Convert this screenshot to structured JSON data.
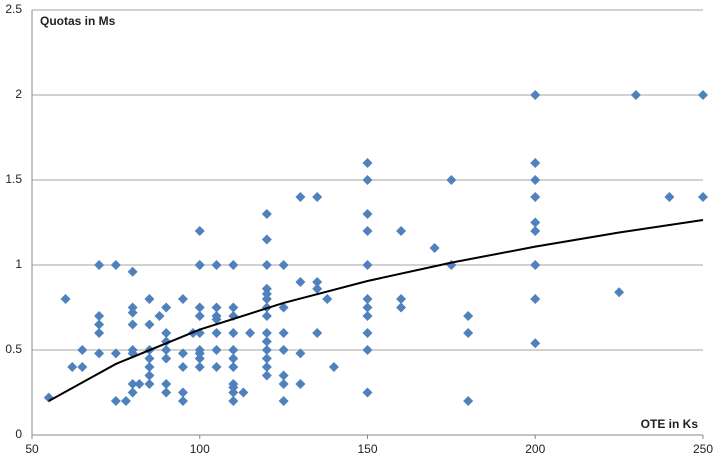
{
  "chart_data": {
    "type": "scatter",
    "y_label": "Quotas in Ms",
    "x_label": "OTE in Ks",
    "xlim": [
      50,
      250
    ],
    "xticks": [
      50,
      100,
      150,
      200,
      250
    ],
    "ylim": [
      0,
      2.5
    ],
    "yticks": [
      0,
      0.5,
      1,
      1.5,
      2,
      2.5
    ],
    "grid": true,
    "series": [
      {
        "color": "#4f81bd",
        "x": [
          55,
          60,
          62,
          65,
          65,
          70,
          70,
          70,
          70,
          70,
          75,
          75,
          75,
          78,
          80,
          80,
          80,
          80,
          80,
          80,
          80,
          80,
          82,
          85,
          85,
          85,
          85,
          85,
          85,
          85,
          88,
          90,
          90,
          90,
          90,
          90,
          90,
          90,
          95,
          95,
          95,
          95,
          95,
          98,
          100,
          100,
          100,
          100,
          100,
          100,
          100,
          100,
          100,
          100,
          105,
          105,
          105,
          105,
          105,
          105,
          105,
          110,
          110,
          110,
          110,
          110,
          110,
          110,
          110,
          110,
          110,
          110,
          113,
          115,
          120,
          120,
          120,
          120,
          120,
          120,
          120,
          120,
          120,
          120,
          120,
          120,
          120,
          120,
          125,
          125,
          125,
          125,
          125,
          125,
          125,
          130,
          130,
          130,
          130,
          135,
          135,
          135,
          135,
          138,
          140,
          150,
          150,
          150,
          150,
          150,
          150,
          150,
          150,
          150,
          150,
          150,
          160,
          160,
          160,
          170,
          175,
          175,
          180,
          180,
          180,
          200,
          200,
          200,
          200,
          200,
          200,
          200,
          200,
          200,
          225,
          230,
          240,
          250,
          250
        ],
        "values": [
          0.22,
          0.8,
          0.4,
          0.5,
          0.4,
          1.0,
          0.7,
          0.65,
          0.6,
          0.48,
          1.0,
          0.48,
          0.2,
          0.2,
          0.96,
          0.75,
          0.72,
          0.65,
          0.5,
          0.48,
          0.3,
          0.25,
          0.3,
          0.8,
          0.65,
          0.5,
          0.45,
          0.4,
          0.35,
          0.3,
          0.7,
          0.75,
          0.6,
          0.55,
          0.5,
          0.45,
          0.3,
          0.25,
          0.8,
          0.48,
          0.4,
          0.25,
          0.2,
          0.6,
          1.2,
          1.0,
          1.0,
          0.75,
          0.7,
          0.6,
          0.5,
          0.48,
          0.45,
          0.4,
          1.0,
          0.75,
          0.7,
          0.68,
          0.6,
          0.5,
          0.4,
          1.0,
          0.75,
          0.7,
          0.6,
          0.5,
          0.45,
          0.4,
          0.3,
          0.28,
          0.25,
          0.2,
          0.25,
          0.6,
          1.3,
          1.15,
          1.0,
          0.86,
          0.83,
          0.8,
          0.75,
          0.7,
          0.6,
          0.55,
          0.5,
          0.45,
          0.4,
          0.35,
          1.0,
          0.75,
          0.6,
          0.5,
          0.35,
          0.3,
          0.2,
          1.4,
          0.9,
          0.48,
          0.3,
          1.4,
          0.9,
          0.86,
          0.6,
          0.8,
          0.4,
          1.6,
          1.5,
          1.3,
          1.2,
          1.0,
          0.8,
          0.75,
          0.7,
          0.6,
          0.5,
          0.25,
          1.2,
          0.8,
          0.75,
          1.1,
          1.5,
          1.0,
          0.7,
          0.6,
          0.2,
          2.0,
          1.6,
          1.5,
          1.4,
          1.25,
          1.2,
          1.0,
          0.8,
          0.54,
          0.84,
          2.0,
          1.4,
          2.0,
          1.4
        ]
      }
    ],
    "trendline": {
      "color": "#000000",
      "x": [
        55,
        75,
        100,
        125,
        150,
        175,
        200,
        225,
        250
      ],
      "values": [
        0.2,
        0.418,
        0.62,
        0.777,
        0.906,
        1.014,
        1.108,
        1.191,
        1.265
      ]
    }
  }
}
